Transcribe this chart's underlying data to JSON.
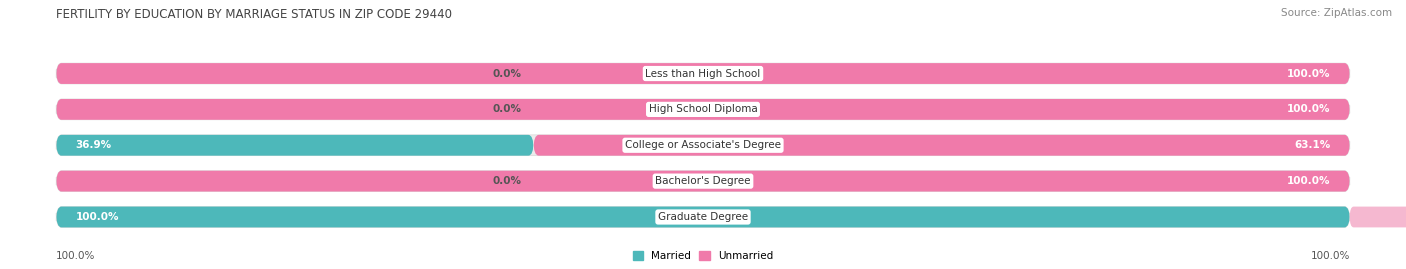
{
  "title": "FERTILITY BY EDUCATION BY MARRIAGE STATUS IN ZIP CODE 29440",
  "source": "Source: ZipAtlas.com",
  "categories": [
    "Less than High School",
    "High School Diploma",
    "College or Associate's Degree",
    "Bachelor's Degree",
    "Graduate Degree"
  ],
  "married": [
    0.0,
    0.0,
    36.9,
    0.0,
    100.0
  ],
  "unmarried": [
    100.0,
    100.0,
    63.1,
    100.0,
    0.0
  ],
  "married_color": "#4db8ba",
  "unmarried_color": "#f07aaa",
  "unmarried_faint_color": "#f5b8d0",
  "bar_bg_color": "#ebebeb",
  "bar_border_color": "#d8d8d8",
  "title_fontsize": 8.5,
  "source_fontsize": 7.5,
  "label_fontsize": 7.5,
  "category_fontsize": 7.5,
  "bar_height": 0.58,
  "background_color": "#ffffff",
  "bottom_left_label": "100.0%",
  "bottom_right_label": "100.0%",
  "married_label_color": "#555555",
  "unmarried_label_color_dark": "#ffffff",
  "unmarried_label_color_light": "#555555"
}
